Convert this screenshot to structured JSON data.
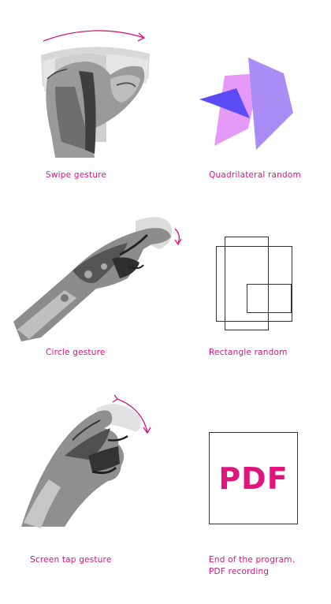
{
  "colors": {
    "accent": "#d4167e",
    "purple_dark": "#5b4cf5",
    "purple_light": "#a98cf6",
    "pink_light": "#e59af7"
  },
  "cells": [
    {
      "caption": "Swipe gesture",
      "icon": "swipe-hand-icon"
    },
    {
      "caption": "Quadrilateral random",
      "icon": "quadrilateral-icon"
    },
    {
      "caption": "Circle gesture",
      "icon": "circle-hand-icon"
    },
    {
      "caption": "Rectangle random",
      "icon": "rectangles-icon"
    },
    {
      "caption": "Screen tap gesture",
      "icon": "tap-hand-icon"
    },
    {
      "caption_line1": "End of the program.",
      "caption_line2": "PDF recording",
      "icon": "pdf-icon",
      "pdf_label": "PDF"
    }
  ]
}
